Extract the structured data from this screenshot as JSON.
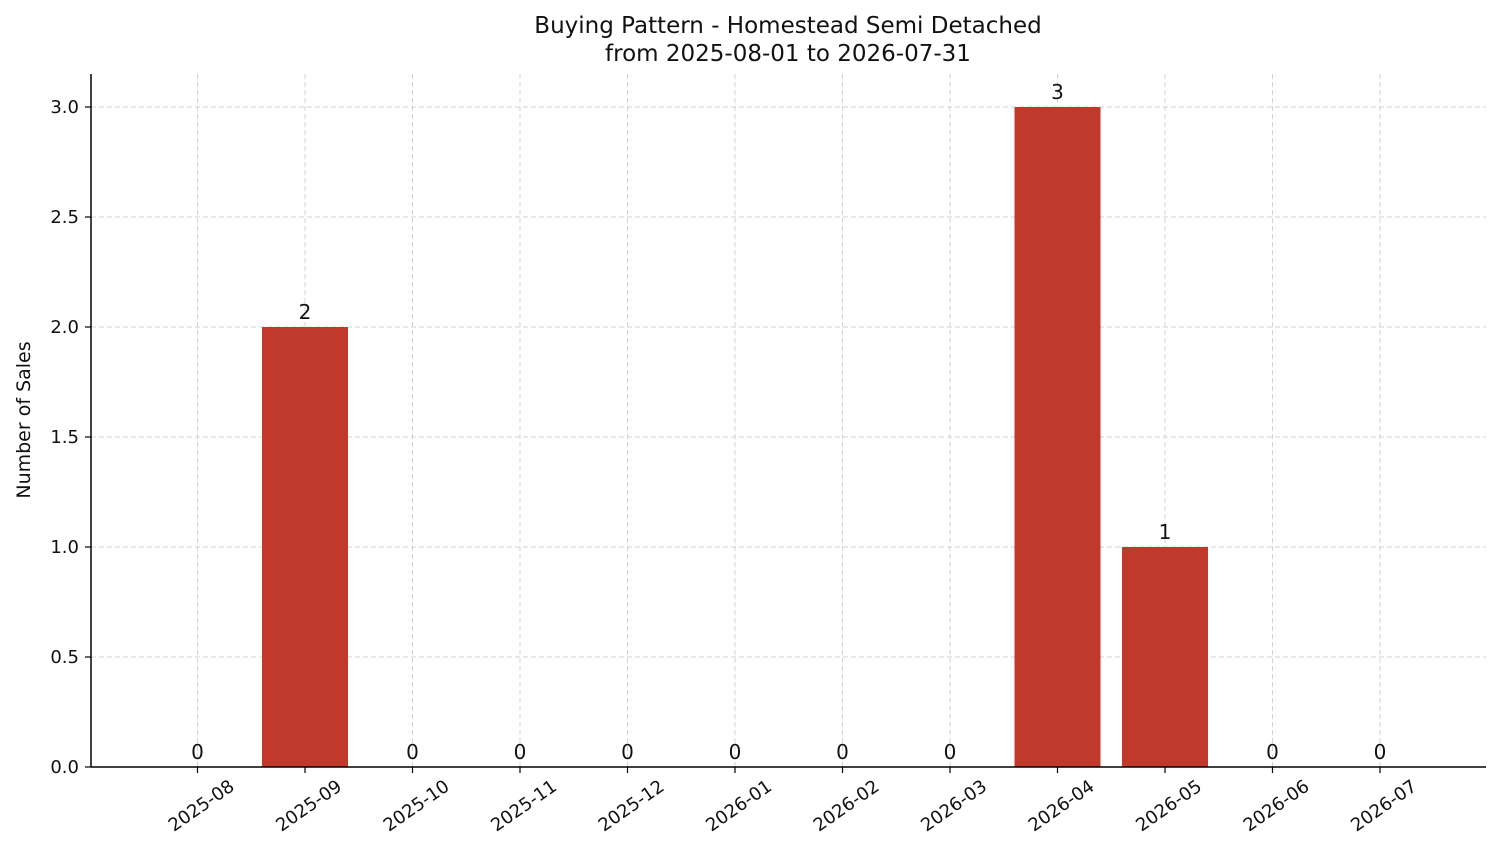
{
  "chart_data": {
    "type": "bar",
    "title": "Buying Pattern - Homestead Semi Detached",
    "subtitle": "from 2025-08-01 to 2026-07-31",
    "xlabel": "",
    "ylabel": "Number of Sales",
    "categories": [
      "2025-08",
      "2025-09",
      "2025-10",
      "2025-11",
      "2025-12",
      "2026-01",
      "2026-02",
      "2026-03",
      "2026-04",
      "2026-05",
      "2026-06",
      "2026-07"
    ],
    "values": [
      0,
      2,
      0,
      0,
      0,
      0,
      0,
      0,
      3,
      1,
      0,
      0
    ],
    "data_labels": [
      "0",
      "2",
      "0",
      "0",
      "0",
      "0",
      "0",
      "0",
      "3",
      "1",
      "0",
      "0"
    ],
    "ylim": [
      0,
      3.15
    ],
    "yticks": [
      "0.0",
      "0.5",
      "1.0",
      "1.5",
      "2.0",
      "2.5",
      "3.0"
    ],
    "ytick_values": [
      0,
      0.5,
      1.0,
      1.5,
      2.0,
      2.5,
      3.0
    ],
    "grid": true,
    "bar_color": "#c0392b",
    "x_tick_rotation": "diagonal"
  }
}
